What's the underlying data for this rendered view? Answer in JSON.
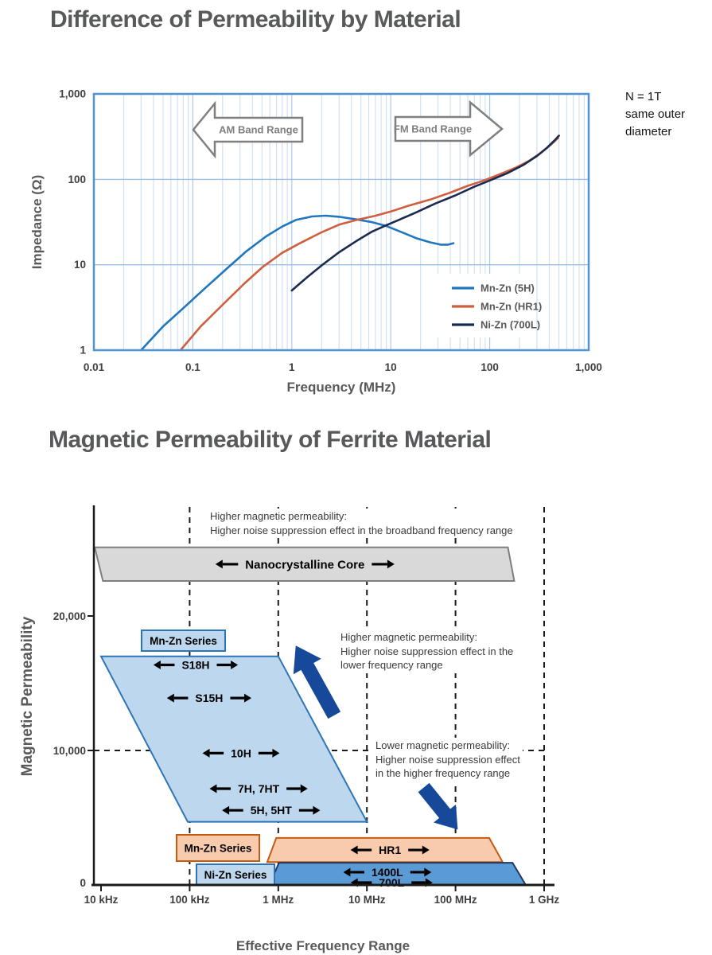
{
  "page": {
    "title1": "Difference of Permeability by Material",
    "title2": "Magnetic Permeability of Ferrite Material",
    "note_lines": [
      "N = 1T",
      "same outer",
      "diameter"
    ]
  },
  "chart_data": [
    {
      "type": "line",
      "title": "Difference of Permeability by Material",
      "xlabel": "Frequency (MHz)",
      "ylabel": "Impedance (Ω)",
      "x_scale": "log",
      "y_scale": "log",
      "xlim": [
        0.01,
        1000
      ],
      "ylim": [
        1,
        1000
      ],
      "x_ticks": [
        "0.01",
        "0.1",
        "1",
        "10",
        "100",
        "1,000"
      ],
      "x_tick_values": [
        0.01,
        0.1,
        1,
        10,
        100,
        1000
      ],
      "y_ticks": [
        "1",
        "10",
        "100",
        "1,000"
      ],
      "y_tick_values": [
        1,
        10,
        100,
        1000
      ],
      "grid": "log-minor-vertical, decade-horizontal",
      "legend_position": "inside-bottom-right",
      "range_arrows": [
        {
          "label": "AM Band Range",
          "direction": "left"
        },
        {
          "label": "FM Band Range",
          "direction": "right"
        }
      ],
      "series": [
        {
          "name": "Mn-Zn (5H)",
          "color": "#2077bd",
          "points": [
            [
              0.03,
              1
            ],
            [
              0.05,
              1.9
            ],
            [
              0.08,
              3.1
            ],
            [
              0.13,
              5.2
            ],
            [
              0.22,
              9
            ],
            [
              0.35,
              14.5
            ],
            [
              0.55,
              21.5
            ],
            [
              0.8,
              28
            ],
            [
              1.1,
              33.5
            ],
            [
              1.6,
              36.8
            ],
            [
              2.2,
              37.6
            ],
            [
              3,
              36.5
            ],
            [
              4.5,
              34
            ],
            [
              6.5,
              31.5
            ],
            [
              9,
              28.5
            ],
            [
              13,
              24
            ],
            [
              18,
              20.5
            ],
            [
              25,
              18.3
            ],
            [
              32,
              17.2
            ],
            [
              38,
              17.2
            ],
            [
              43,
              17.9
            ]
          ]
        },
        {
          "name": "Mn-Zn (HR1)",
          "color": "#cf5f3e",
          "points": [
            [
              0.075,
              1
            ],
            [
              0.12,
              1.9
            ],
            [
              0.2,
              3.4
            ],
            [
              0.33,
              6
            ],
            [
              0.5,
              9.3
            ],
            [
              0.8,
              13.8
            ],
            [
              1.2,
              17.8
            ],
            [
              2,
              24
            ],
            [
              3,
              29.5
            ],
            [
              4.5,
              33.5
            ],
            [
              7,
              37.5
            ],
            [
              10,
              42
            ],
            [
              15,
              49
            ],
            [
              25,
              58
            ],
            [
              40,
              70
            ],
            [
              60,
              84
            ],
            [
              85,
              96
            ],
            [
              120,
              112
            ],
            [
              180,
              136
            ],
            [
              250,
              165
            ],
            [
              330,
              205
            ],
            [
              420,
              258
            ],
            [
              490,
              305
            ]
          ]
        },
        {
          "name": "Ni-Zn (700L)",
          "color": "#1b2a4f",
          "points": [
            [
              1,
              5
            ],
            [
              1.4,
              7
            ],
            [
              2,
              9.8
            ],
            [
              3,
              14
            ],
            [
              4.5,
              19
            ],
            [
              6.5,
              24.5
            ],
            [
              9,
              29
            ],
            [
              12,
              33.5
            ],
            [
              18,
              41
            ],
            [
              28,
              52
            ],
            [
              45,
              65
            ],
            [
              70,
              82
            ],
            [
              100,
              97
            ],
            [
              150,
              118
            ],
            [
              220,
              148
            ],
            [
              300,
              188
            ],
            [
              380,
              235
            ],
            [
              450,
              285
            ],
            [
              500,
              325
            ]
          ]
        }
      ]
    },
    {
      "type": "area",
      "subtype": "frequency-band-diagram",
      "title": "Magnetic Permeability of Ferrite Material",
      "xlabel": "Effective Frequency Range",
      "ylabel": "Magnetic Permeability",
      "x_scale": "log",
      "x_ticks": [
        "10 kHz",
        "100 kHz",
        "1 MHz",
        "10 MHz",
        "100 MHz",
        "1 GHz"
      ],
      "x_tick_khz": [
        10,
        100,
        1000,
        10000,
        100000,
        1000000
      ],
      "y_ticks": [
        "0",
        "10,000",
        "20,000"
      ],
      "y_tick_values": [
        0,
        10000,
        20000
      ],
      "dashed_vertical_khz": [
        100,
        1000,
        10000,
        100000,
        1000000
      ],
      "dashed_horizontal_perm": 10000,
      "bands": [
        {
          "name": "nanocrystalline",
          "fill": "#d9d9d9",
          "stroke": "#7f7f7f",
          "freq_top_khz": [
            8.5,
            390000
          ],
          "freq_bottom_khz": [
            10.5,
            460000
          ],
          "perm_top": 25100,
          "perm_bottom": 22600,
          "materials": [
            {
              "label": "Nanocrystalline Core",
              "freq_khz": 2000,
              "perm": 23850,
              "size": 15
            }
          ]
        },
        {
          "name": "mn-zn-ferrite",
          "fill": "#bdd7ee",
          "stroke": "#2e75b6",
          "freq_top_khz": [
            10,
            1000
          ],
          "freq_bottom_khz": [
            95,
            10000
          ],
          "perm_top": 17000,
          "perm_bottom": 4700,
          "materials": [
            {
              "label": "S18H",
              "freq_khz": 117,
              "perm": 16360,
              "size": 14
            },
            {
              "label": "S15H",
              "freq_khz": 166,
              "perm": 13900,
              "size": 14
            },
            {
              "label": "10H",
              "freq_khz": 380,
              "perm": 9800,
              "size": 14
            },
            {
              "label": "7H, 7HT",
              "freq_khz": 600,
              "perm": 7160,
              "size": 14
            },
            {
              "label": "5H, 5HT",
              "freq_khz": 830,
              "perm": 5550,
              "size": 14
            }
          ]
        },
        {
          "name": "mn-zn-hr",
          "fill": "#f7cbac",
          "stroke": "#c55a11",
          "freq_top_khz": [
            950,
            240000
          ],
          "freq_bottom_khz": [
            750,
            340000
          ],
          "perm_top": 3500,
          "perm_bottom": 1700,
          "materials": [
            {
              "label": "HR1",
              "freq_khz": 18200,
              "perm": 2600,
              "size": 14
            }
          ]
        },
        {
          "name": "ni-zn",
          "fill": "#5b9bd5",
          "stroke": "#1f3864",
          "freq_top_khz": [
            1020,
            440000
          ],
          "freq_bottom_khz": [
            790,
            620000
          ],
          "perm_top": 1650,
          "perm_bottom": 0,
          "materials": [
            {
              "label": "1400L",
              "freq_khz": 17000,
              "perm": 950,
              "size": 14
            },
            {
              "label": "700L",
              "freq_khz": 19000,
              "perm": 150,
              "size": 14
            }
          ]
        }
      ],
      "series_boxes": [
        {
          "label": "Mn-Zn Series",
          "fill": "#bdd7ee",
          "stroke": "#2e75b6"
        },
        {
          "label": "Mn-Zn Series",
          "fill": "#f7cbac",
          "stroke": "#c55a11"
        },
        {
          "label": "Ni-Zn Series",
          "fill": "#bdd7ee",
          "stroke": "#2e75b6"
        }
      ],
      "trend_arrows": [
        {
          "direction": "up-left",
          "color": "#17499b"
        },
        {
          "direction": "down-right",
          "color": "#17499b"
        }
      ],
      "annotations": [
        {
          "lines": [
            "Higher magnetic permeability:",
            "Higher noise suppression effect in the broadband frequency range"
          ]
        },
        {
          "lines": [
            "Higher magnetic permeability:",
            "Higher noise suppression effect in the",
            "lower frequency range"
          ]
        },
        {
          "lines": [
            "Lower magnetic permeability:",
            "Higher noise suppression effect",
            "in the higher frequency range"
          ]
        }
      ]
    }
  ]
}
